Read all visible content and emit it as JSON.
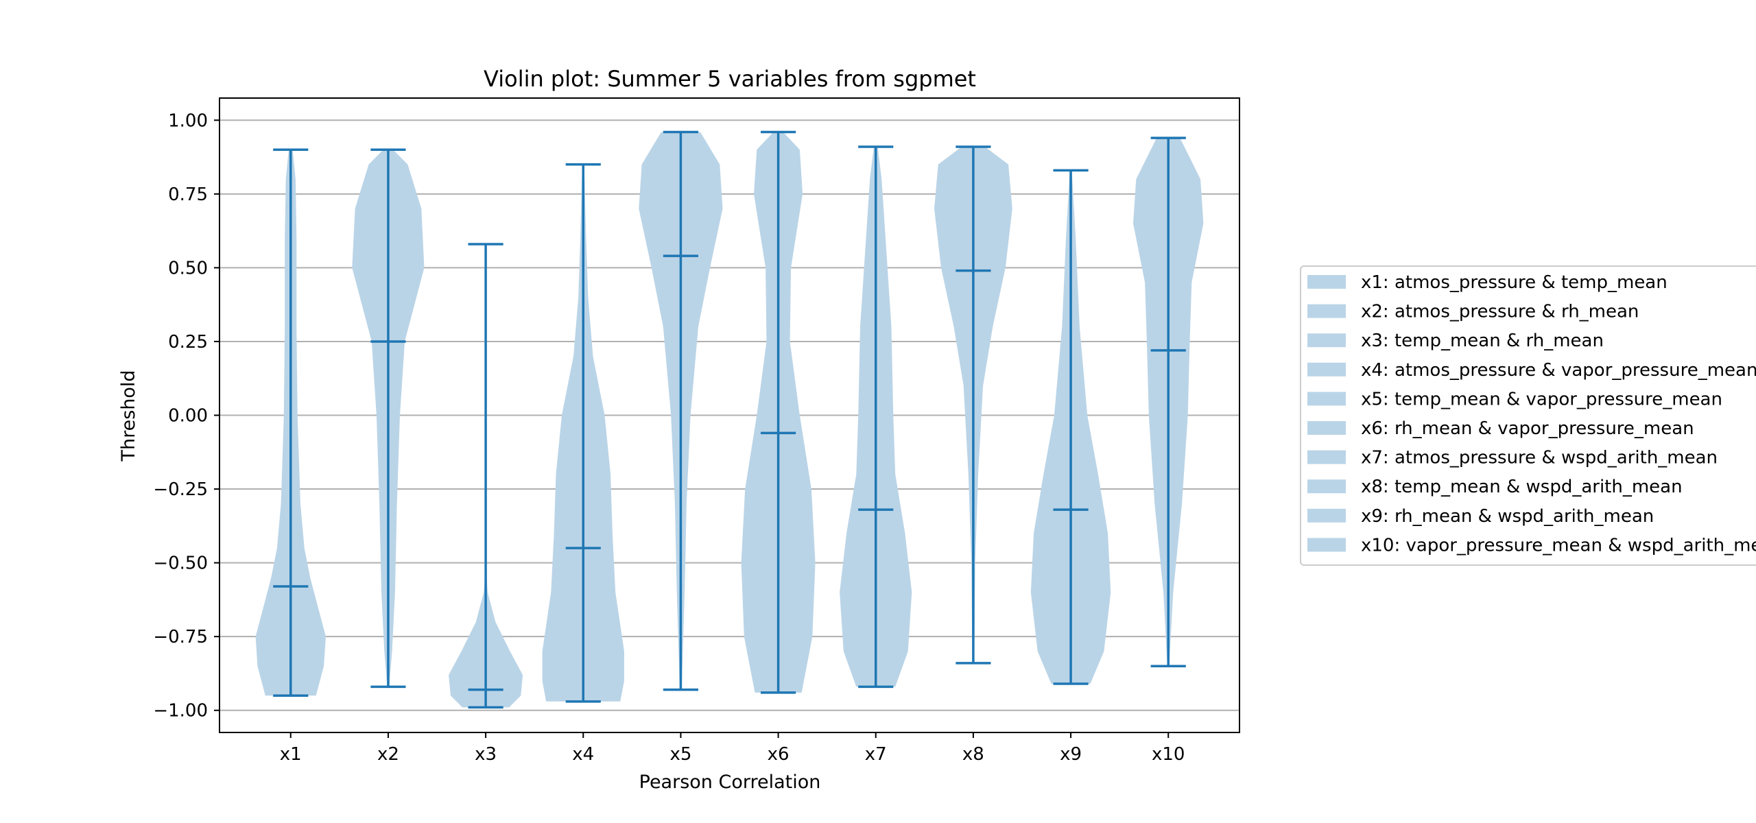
{
  "chart_data": {
    "type": "violin",
    "title": "Violin plot: Summer 5 variables from sgpmet",
    "xlabel": "Pearson Correlation",
    "ylabel": "Threshold",
    "ylim": [
      -1.075,
      1.075
    ],
    "y_ticks": [
      "−1.00",
      "−0.75",
      "−0.50",
      "−0.25",
      "0.00",
      "0.25",
      "0.50",
      "0.75",
      "1.00"
    ],
    "y_tick_values": [
      -1.0,
      -0.75,
      -0.5,
      -0.25,
      0.0,
      0.25,
      0.5,
      0.75,
      1.0
    ],
    "grid": "horizontal",
    "legend_position": "right",
    "colors": {
      "violin_fill": "#bad4e7",
      "stat_line": "#1f77b4",
      "grid": "#b0b0b0",
      "legend_patch": "#bad4e7"
    },
    "categories": [
      "x1",
      "x2",
      "x3",
      "x4",
      "x5",
      "x6",
      "x7",
      "x8",
      "x9",
      "x10"
    ],
    "legend": [
      "x1: atmos_pressure & temp_mean",
      "x2: atmos_pressure & rh_mean",
      "x3: temp_mean & rh_mean",
      "x4: atmos_pressure & vapor_pressure_mean",
      "x5: temp_mean & vapor_pressure_mean",
      "x6: rh_mean & vapor_pressure_mean",
      "x7: atmos_pressure & wspd_arith_mean",
      "x8: temp_mean & wspd_arith_mean",
      "x9: rh_mean & wspd_arith_mean",
      "x10: vapor_pressure_mean & wspd_arith_mean"
    ],
    "series": [
      {
        "category": "x1",
        "min": -0.95,
        "max": 0.9,
        "mean": -0.58,
        "density": [
          [
            -0.95,
            0.26
          ],
          [
            -0.85,
            0.34
          ],
          [
            -0.75,
            0.36
          ],
          [
            -0.65,
            0.28
          ],
          [
            -0.55,
            0.2
          ],
          [
            -0.45,
            0.14
          ],
          [
            -0.3,
            0.1
          ],
          [
            0.0,
            0.07
          ],
          [
            0.3,
            0.06
          ],
          [
            0.6,
            0.06
          ],
          [
            0.8,
            0.05
          ],
          [
            0.9,
            0.02
          ]
        ]
      },
      {
        "category": "x2",
        "min": -0.92,
        "max": 0.9,
        "mean": 0.25,
        "density": [
          [
            -0.92,
            0.01
          ],
          [
            -0.8,
            0.04
          ],
          [
            -0.6,
            0.07
          ],
          [
            -0.3,
            0.09
          ],
          [
            0.0,
            0.12
          ],
          [
            0.25,
            0.17
          ],
          [
            0.5,
            0.37
          ],
          [
            0.7,
            0.34
          ],
          [
            0.85,
            0.2
          ],
          [
            0.9,
            0.05
          ]
        ]
      },
      {
        "category": "x3",
        "min": -0.99,
        "max": 0.58,
        "mean": -0.93,
        "density": [
          [
            -0.99,
            0.24
          ],
          [
            -0.95,
            0.36
          ],
          [
            -0.88,
            0.38
          ],
          [
            -0.8,
            0.25
          ],
          [
            -0.7,
            0.1
          ],
          [
            -0.6,
            0.02
          ],
          [
            -0.5,
            0.0
          ],
          [
            0.58,
            0.0
          ]
        ]
      },
      {
        "category": "x4",
        "min": -0.97,
        "max": 0.85,
        "mean": -0.45,
        "density": [
          [
            -0.97,
            0.38
          ],
          [
            -0.9,
            0.42
          ],
          [
            -0.8,
            0.42
          ],
          [
            -0.6,
            0.33
          ],
          [
            -0.4,
            0.3
          ],
          [
            -0.2,
            0.28
          ],
          [
            0.0,
            0.22
          ],
          [
            0.2,
            0.1
          ],
          [
            0.4,
            0.05
          ],
          [
            0.6,
            0.03
          ],
          [
            0.85,
            0.01
          ]
        ]
      },
      {
        "category": "x5",
        "min": -0.93,
        "max": 0.96,
        "mean": 0.54,
        "density": [
          [
            -0.93,
            0.01
          ],
          [
            -0.6,
            0.04
          ],
          [
            -0.3,
            0.06
          ],
          [
            0.0,
            0.1
          ],
          [
            0.3,
            0.18
          ],
          [
            0.5,
            0.3
          ],
          [
            0.7,
            0.43
          ],
          [
            0.85,
            0.4
          ],
          [
            0.96,
            0.2
          ]
        ]
      },
      {
        "category": "x6",
        "min": -0.94,
        "max": 0.96,
        "mean": -0.06,
        "density": [
          [
            -0.94,
            0.24
          ],
          [
            -0.75,
            0.35
          ],
          [
            -0.5,
            0.38
          ],
          [
            -0.25,
            0.34
          ],
          [
            0.0,
            0.22
          ],
          [
            0.25,
            0.12
          ],
          [
            0.5,
            0.13
          ],
          [
            0.75,
            0.25
          ],
          [
            0.9,
            0.22
          ],
          [
            0.96,
            0.05
          ]
        ]
      },
      {
        "category": "x7",
        "min": -0.92,
        "max": 0.91,
        "mean": -0.32,
        "density": [
          [
            -0.92,
            0.2
          ],
          [
            -0.8,
            0.33
          ],
          [
            -0.6,
            0.37
          ],
          [
            -0.4,
            0.3
          ],
          [
            -0.2,
            0.2
          ],
          [
            0.0,
            0.18
          ],
          [
            0.3,
            0.16
          ],
          [
            0.6,
            0.1
          ],
          [
            0.8,
            0.06
          ],
          [
            0.91,
            0.02
          ]
        ]
      },
      {
        "category": "x8",
        "min": -0.84,
        "max": 0.91,
        "mean": 0.49,
        "density": [
          [
            -0.84,
            0.01
          ],
          [
            -0.5,
            0.02
          ],
          [
            -0.2,
            0.05
          ],
          [
            0.1,
            0.1
          ],
          [
            0.3,
            0.2
          ],
          [
            0.5,
            0.33
          ],
          [
            0.7,
            0.4
          ],
          [
            0.85,
            0.36
          ],
          [
            0.91,
            0.12
          ]
        ]
      },
      {
        "category": "x9",
        "min": -0.91,
        "max": 0.83,
        "mean": -0.32,
        "density": [
          [
            -0.91,
            0.2
          ],
          [
            -0.8,
            0.34
          ],
          [
            -0.6,
            0.41
          ],
          [
            -0.4,
            0.38
          ],
          [
            -0.2,
            0.28
          ],
          [
            0.0,
            0.17
          ],
          [
            0.3,
            0.09
          ],
          [
            0.6,
            0.05
          ],
          [
            0.83,
            0.01
          ]
        ]
      },
      {
        "category": "x10",
        "min": -0.85,
        "max": 0.94,
        "mean": 0.22,
        "density": [
          [
            -0.85,
            0.01
          ],
          [
            -0.6,
            0.05
          ],
          [
            -0.3,
            0.14
          ],
          [
            0.0,
            0.2
          ],
          [
            0.25,
            0.22
          ],
          [
            0.45,
            0.24
          ],
          [
            0.65,
            0.36
          ],
          [
            0.8,
            0.33
          ],
          [
            0.94,
            0.12
          ]
        ]
      }
    ]
  }
}
